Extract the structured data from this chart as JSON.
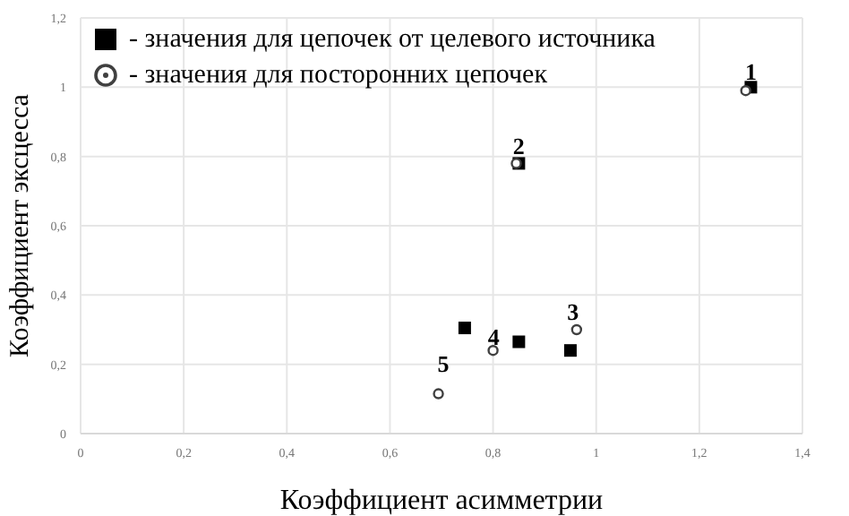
{
  "chart_data": {
    "type": "scatter",
    "xlabel": "Коэффициент асимметрии",
    "ylabel": "Коэффициент эксцесса",
    "series": [
      {
        "name": "- значения для цепочек от целевого источника",
        "color": "#000000",
        "marker": "square",
        "x": [
          1.3,
          0.85,
          0.95,
          0.85,
          0.745
        ],
        "values": [
          1.0,
          0.78,
          0.24,
          0.265,
          0.305
        ]
      },
      {
        "name": "- значения для посторонних цепочек",
        "color": "#404040",
        "marker": "circle",
        "x": [
          1.29,
          0.845,
          0.962,
          0.8,
          0.694
        ],
        "values": [
          0.99,
          0.78,
          0.3,
          0.24,
          0.115
        ]
      }
    ],
    "annotations": [
      {
        "text": "1",
        "x": 1.3,
        "y": 1.0
      },
      {
        "text": "2",
        "x": 0.85,
        "y": 0.78
      },
      {
        "text": "3",
        "x": 0.962,
        "y": 0.3
      },
      {
        "text": "4",
        "x": 0.85,
        "y": 0.265
      },
      {
        "text": "5",
        "x": 0.745,
        "y": 0.305
      }
    ],
    "xlim": [
      0,
      1.4
    ],
    "xticks": [
      {
        "value": 0,
        "label": "0"
      },
      {
        "value": 0.2,
        "label": "0,2"
      },
      {
        "value": 0.4,
        "label": "0,4"
      },
      {
        "value": 0.6,
        "label": "0,6"
      },
      {
        "value": 0.8,
        "label": "0,8"
      },
      {
        "value": 1,
        "label": "1"
      },
      {
        "value": 1.2,
        "label": "1,2"
      },
      {
        "value": 1.4,
        "label": "1,4"
      }
    ],
    "ylim": [
      0,
      1.2
    ],
    "yticks": [
      {
        "value": 0,
        "label": "0"
      },
      {
        "value": 0.2,
        "label": "0,2"
      },
      {
        "value": 0.4,
        "label": "0,4"
      },
      {
        "value": 0.6,
        "label": "0,6"
      },
      {
        "value": 0.8,
        "label": "0,8"
      },
      {
        "value": 1,
        "label": "1"
      },
      {
        "value": 1.2,
        "label": "1,2"
      }
    ],
    "grid": true,
    "legend": "top left"
  }
}
